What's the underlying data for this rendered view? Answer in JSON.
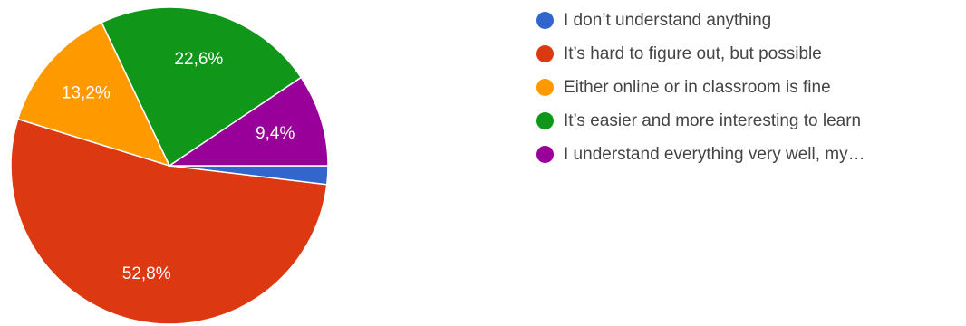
{
  "chart_data": {
    "type": "pie",
    "series": [
      {
        "label": "I don’t understand anything",
        "value": 1.9,
        "color": "#3366cc",
        "display": ""
      },
      {
        "label": "It’s hard to figure out, but possible",
        "value": 52.8,
        "color": "#dc3912",
        "display": "52,8%"
      },
      {
        "label": "Either online or in classroom is fine",
        "value": 13.2,
        "color": "#ff9900",
        "display": "13,2%"
      },
      {
        "label": "It’s easier and more interesting to learn",
        "value": 22.6,
        "color": "#109618",
        "display": "22,6%"
      },
      {
        "label": "I understand everything very well, my…",
        "value": 9.4,
        "color": "#990099",
        "display": "9,4%"
      }
    ],
    "legend_position": "right",
    "start": "clockwise from 3 o'clock"
  }
}
